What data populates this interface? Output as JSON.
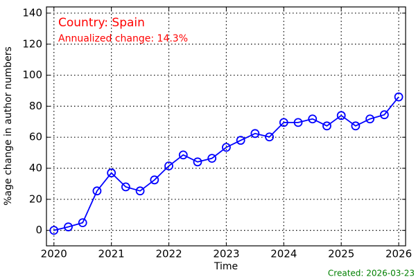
{
  "chart_data": {
    "type": "line",
    "annotations": [
      "Country: Spain",
      "Annualized change: 14.3%"
    ],
    "footer": "Created: 2026-03-23",
    "xlabel": "Time",
    "ylabel": "%age change in author numbers",
    "x": [
      2020,
      2020.25,
      2020.5,
      2020.75,
      2021,
      2021.25,
      2021.5,
      2021.75,
      2022,
      2022.25,
      2022.5,
      2022.75,
      2023,
      2023.25,
      2023.5,
      2023.75,
      2024,
      2024.25,
      2024.5,
      2024.75,
      2025,
      2025.25,
      2025.5,
      2025.75,
      2026
    ],
    "series": [
      {
        "color": "#0000ff",
        "values": [
          0,
          2.2,
          4.9,
          25.4,
          37,
          28,
          25.4,
          32.5,
          41.5,
          48.6,
          44.1,
          46.4,
          53.5,
          58,
          62.4,
          60.2,
          69.5,
          69.5,
          71.8,
          67.3,
          74,
          67.3,
          71.8,
          74.5,
          86
        ]
      }
    ],
    "xlim": [
      2019.87,
      2026.12
    ],
    "xticks": [
      2020,
      2021,
      2022,
      2023,
      2024,
      2025,
      2026
    ],
    "ylim": [
      -10,
      144
    ],
    "yticks": [
      0,
      20,
      40,
      60,
      80,
      100,
      120,
      140
    ],
    "grid": true
  }
}
